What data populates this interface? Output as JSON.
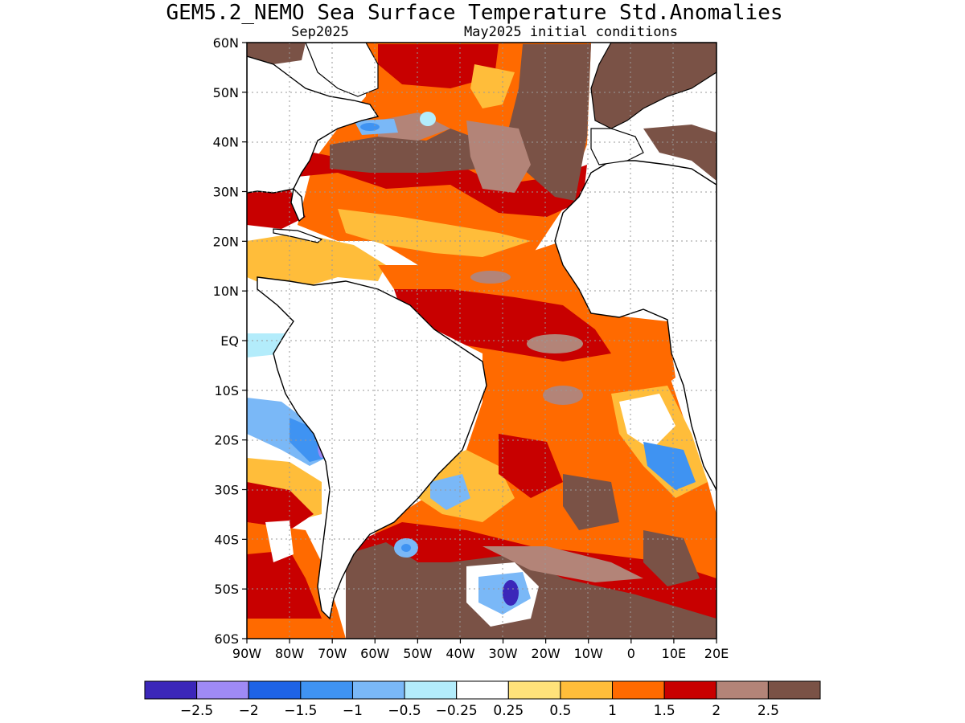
{
  "title": "GEM5.2_NEMO Sea Surface Temperature Std.Anomalies",
  "subtitle_left": "Sep2025",
  "subtitle_right": "May2025 initial conditions",
  "map": {
    "lat_range": [
      -60,
      60
    ],
    "lon_range": [
      -90,
      20
    ],
    "lat_ticks": [
      "60N",
      "50N",
      "40N",
      "30N",
      "20N",
      "10N",
      "EQ",
      "10S",
      "20S",
      "30S",
      "40S",
      "50S",
      "60S"
    ],
    "lon_ticks": [
      "90W",
      "80W",
      "70W",
      "60W",
      "50W",
      "40W",
      "30W",
      "20W",
      "10W",
      "0",
      "10E",
      "20E"
    ],
    "grid": true
  },
  "colorbar": {
    "colors": [
      "#3b27b9",
      "#9f8af5",
      "#1e63e6",
      "#3f93f2",
      "#7ab8f7",
      "#b3ecfb",
      "#ffffff",
      "#ffe27a",
      "#ffbd3a",
      "#ff6a00",
      "#c80000",
      "#b38478",
      "#7a5246"
    ],
    "labels": [
      "-2.5",
      "-2",
      "-1.5",
      "-1",
      "-0.5",
      "-0.25",
      "0.25",
      "0.5",
      "1",
      "1.5",
      "2",
      "2.5"
    ]
  }
}
